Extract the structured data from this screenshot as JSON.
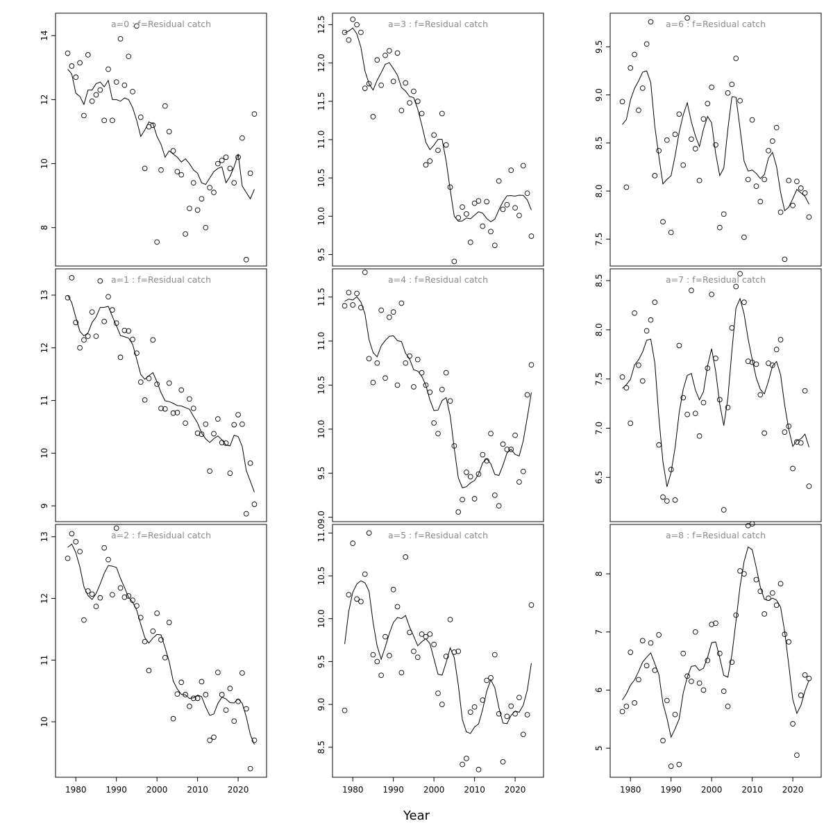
{
  "figure": {
    "xlabel": "Year",
    "x_ticks": [
      1980,
      1990,
      2000,
      2010,
      2020
    ],
    "xlim": [
      1975,
      2027
    ],
    "years": [
      1978,
      1979,
      1980,
      1981,
      1982,
      1983,
      1984,
      1985,
      1986,
      1987,
      1988,
      1989,
      1990,
      1991,
      1992,
      1993,
      1994,
      1995,
      1996,
      1997,
      1998,
      1999,
      2000,
      2001,
      2002,
      2003,
      2004,
      2005,
      2006,
      2007,
      2008,
      2009,
      2010,
      2011,
      2012,
      2013,
      2014,
      2015,
      2016,
      2017,
      2018,
      2019,
      2020,
      2021,
      2022,
      2023,
      2024
    ]
  },
  "chart_data": [
    {
      "type": "scatter+line",
      "title": "a=0 :  f=Residual catch",
      "ylim": [
        6.8,
        14.7
      ],
      "y_ticks": [
        8,
        10,
        12,
        14
      ],
      "observed": [
        13.45,
        13.05,
        12.7,
        13.15,
        11.5,
        13.4,
        11.95,
        12.15,
        12.3,
        11.35,
        12.95,
        11.35,
        12.55,
        13.9,
        12.45,
        13.35,
        12.25,
        14.3,
        11.45,
        9.85,
        11.15,
        11.2,
        7.55,
        9.8,
        11.8,
        11.0,
        10.4,
        9.75,
        9.65,
        7.8,
        8.6,
        9.4,
        8.55,
        8.9,
        8.0,
        9.25,
        9.1,
        10.0,
        10.1,
        10.2,
        9.85,
        9.4,
        10.2,
        10.8,
        7.0,
        9.7,
        11.55
      ],
      "fitted": [
        12.95,
        12.8,
        12.2,
        12.1,
        11.85,
        12.3,
        12.3,
        12.5,
        12.55,
        12.4,
        12.6,
        12.0,
        12.0,
        11.95,
        12.05,
        12.0,
        11.75,
        11.35,
        10.85,
        11.05,
        11.3,
        11.25,
        10.85,
        10.6,
        10.2,
        10.4,
        10.3,
        10.2,
        10.05,
        10.15,
        10.0,
        9.8,
        9.7,
        9.4,
        9.35,
        9.55,
        9.75,
        9.85,
        9.9,
        9.4,
        9.6,
        9.9,
        10.3,
        9.3,
        9.1,
        8.9,
        9.2
      ]
    },
    {
      "type": "scatter+line",
      "title": "a=1 :  f=Residual catch",
      "ylim": [
        8.7,
        13.5
      ],
      "y_ticks": [
        9,
        10,
        11,
        12,
        13
      ],
      "observed": [
        12.95,
        13.33,
        12.48,
        12.0,
        12.15,
        12.22,
        12.68,
        12.22,
        13.27,
        12.5,
        12.97,
        12.72,
        12.47,
        11.82,
        12.33,
        12.32,
        12.16,
        11.9,
        11.35,
        11.01,
        11.42,
        12.15,
        11.31,
        10.85,
        10.84,
        11.33,
        10.76,
        10.77,
        11.2,
        10.57,
        11.03,
        10.85,
        10.38,
        10.36,
        10.55,
        9.66,
        10.37,
        10.65,
        10.2,
        10.19,
        9.62,
        10.54,
        10.73,
        10.55,
        8.85,
        9.81,
        9.03
      ]
    },
    {
      "type": "scatter+line",
      "title": "a=2 :  f=Residual catch",
      "ylim": [
        9.1,
        13.2
      ],
      "y_ticks": [
        10,
        11,
        12,
        13
      ],
      "observed": [
        12.65,
        13.05,
        12.92,
        12.76,
        11.65,
        12.12,
        12.07,
        11.87,
        12.01,
        12.82,
        12.63,
        12.06,
        13.14,
        12.17,
        12.02,
        12.04,
        11.97,
        11.88,
        11.69,
        11.3,
        10.83,
        11.47,
        11.76,
        11.33,
        11.04,
        11.61,
        10.05,
        10.45,
        10.64,
        10.44,
        10.25,
        10.38,
        10.38,
        10.65,
        10.44,
        9.7,
        9.75,
        10.8,
        10.44,
        10.19,
        10.54,
        10.01,
        10.33,
        10.79,
        10.21,
        9.24,
        9.7
      ]
    },
    {
      "type": "scatter+line",
      "title": "a=3 :  f=Residual catch",
      "ylim": [
        9.35,
        12.65
      ],
      "y_ticks": [
        9.5,
        10.0,
        10.5,
        11.0,
        11.5,
        12.0,
        12.5
      ],
      "observed": [
        12.4,
        12.3,
        12.57,
        12.5,
        12.4,
        11.67,
        11.73,
        11.3,
        12.04,
        11.71,
        12.1,
        12.16,
        11.76,
        12.13,
        11.38,
        11.74,
        11.48,
        11.63,
        11.5,
        11.34,
        10.67,
        10.72,
        11.06,
        10.86,
        11.34,
        10.93,
        10.38,
        9.41,
        9.98,
        10.12,
        10.03,
        9.66,
        10.17,
        10.2,
        9.87,
        10.19,
        9.8,
        9.62,
        10.46,
        10.09,
        10.15,
        10.6,
        10.11,
        10.01,
        10.66,
        10.3,
        9.74
      ]
    },
    {
      "type": "scatter+line",
      "title": "a=4 :  f=Residual catch",
      "ylim": [
        8.95,
        11.82
      ],
      "y_ticks": [
        9.0,
        9.5,
        10.0,
        10.5,
        11.0,
        11.5
      ],
      "observed": [
        11.4,
        11.55,
        11.41,
        11.54,
        11.38,
        11.78,
        10.8,
        10.53,
        10.75,
        11.35,
        10.58,
        11.27,
        11.33,
        10.5,
        11.43,
        10.75,
        10.83,
        10.48,
        10.79,
        10.64,
        10.5,
        10.42,
        10.07,
        9.95,
        10.45,
        10.64,
        10.32,
        9.81,
        9.06,
        9.2,
        9.51,
        9.46,
        9.21,
        9.49,
        9.71,
        9.64,
        9.95,
        9.25,
        9.13,
        9.83,
        9.77,
        9.77,
        9.93,
        9.4,
        9.52,
        10.39,
        10.73
      ]
    },
    {
      "type": "scatter+line",
      "title": "a=5 :  f=Residual catch",
      "ylim": [
        8.15,
        11.1
      ],
      "y_ticks": [
        8.5,
        9.0,
        9.5,
        10.0,
        10.5,
        11.0
      ],
      "observed": [
        8.93,
        10.28,
        10.88,
        10.23,
        10.2,
        10.52,
        11.0,
        9.58,
        9.5,
        9.34,
        9.79,
        9.57,
        10.34,
        10.14,
        9.37,
        10.72,
        9.84,
        9.62,
        9.55,
        9.82,
        9.79,
        9.82,
        9.7,
        9.13,
        9.0,
        9.56,
        9.99,
        9.61,
        9.62,
        8.3,
        8.37,
        8.91,
        8.97,
        8.24,
        9.05,
        9.28,
        9.31,
        9.58,
        8.89,
        8.33,
        8.86,
        8.98,
        8.89,
        9.08,
        8.65,
        8.88,
        10.16
      ]
    },
    {
      "type": "scatter+line",
      "title": "a=6 :  f=Residual catch",
      "ylim": [
        7.22,
        9.85
      ],
      "y_ticks": [
        7.5,
        8.0,
        8.5,
        9.0,
        9.5
      ],
      "observed": [
        8.93,
        8.04,
        9.28,
        9.42,
        8.84,
        9.07,
        9.53,
        9.76,
        8.16,
        8.42,
        7.68,
        8.53,
        7.57,
        8.59,
        8.8,
        8.27,
        9.8,
        8.54,
        8.44,
        8.11,
        8.75,
        8.91,
        9.08,
        8.48,
        7.62,
        7.76,
        9.02,
        9.11,
        9.38,
        8.94,
        7.52,
        8.12,
        8.74,
        8.05,
        7.89,
        8.12,
        8.42,
        8.52,
        8.66,
        7.78,
        7.29,
        8.11,
        7.85,
        8.1,
        8.03,
        7.98,
        7.73
      ]
    },
    {
      "type": "scatter+line",
      "title": "a=7 :  f=Residual catch",
      "ylim": [
        6.05,
        8.62
      ],
      "y_ticks": [
        6.5,
        7.0,
        7.5,
        8.0,
        8.5
      ],
      "observed": [
        7.52,
        7.41,
        7.05,
        8.17,
        7.64,
        7.48,
        7.99,
        8.1,
        8.28,
        6.83,
        6.3,
        6.26,
        6.58,
        6.27,
        7.84,
        7.31,
        7.14,
        8.4,
        7.15,
        6.92,
        7.26,
        7.61,
        8.36,
        7.71,
        7.29,
        6.17,
        7.21,
        8.02,
        8.44,
        8.57,
        8.28,
        7.68,
        7.67,
        7.65,
        7.34,
        6.95,
        7.66,
        7.64,
        7.8,
        7.9,
        6.96,
        7.02,
        6.59,
        6.86,
        6.85,
        7.38,
        6.41
      ]
    },
    {
      "type": "scatter+line",
      "title": "a=8 :  f=Residual catch",
      "ylim": [
        4.5,
        8.85
      ],
      "y_ticks": [
        5,
        6,
        7,
        8
      ],
      "observed": [
        5.63,
        5.72,
        6.65,
        5.78,
        6.18,
        6.85,
        6.42,
        6.81,
        6.34,
        6.95,
        5.13,
        5.82,
        4.69,
        5.58,
        4.72,
        6.63,
        6.24,
        6.15,
        7.0,
        6.12,
        6.0,
        6.51,
        7.13,
        7.15,
        6.63,
        5.98,
        5.72,
        6.48,
        7.29,
        8.05,
        8.0,
        8.83,
        8.86,
        7.9,
        7.7,
        7.31,
        7.58,
        7.67,
        7.46,
        7.83,
        6.96,
        6.83,
        5.42,
        4.88,
        5.91,
        6.26,
        6.2
      ]
    }
  ]
}
